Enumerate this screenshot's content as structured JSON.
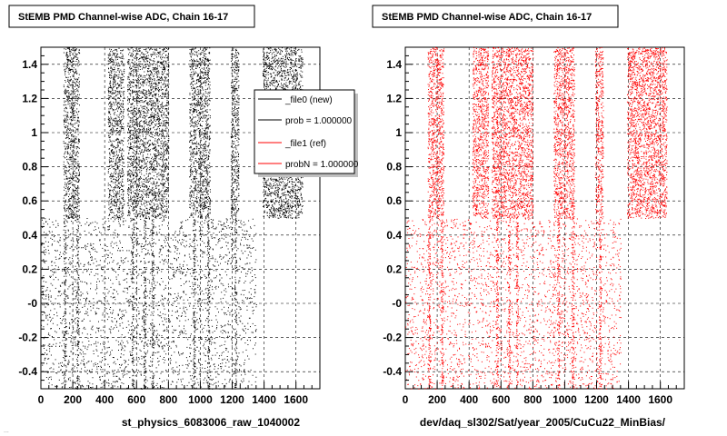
{
  "footer_stamp": "...",
  "chart_data": [
    {
      "type": "scatter",
      "title": "StEMB PMD Channel-wise ADC, Chain 16-17",
      "xlabel": "st_physics_6083006_raw_1040002",
      "ylabel": "",
      "xlim": [
        0,
        1750
      ],
      "ylim": [
        -0.5,
        1.5
      ],
      "x_ticks": [
        "0",
        "200",
        "400",
        "600",
        "800",
        "1000",
        "1200",
        "1400",
        "1600"
      ],
      "y_ticks": [
        "-0.4",
        "-0.2",
        "-0",
        "0.2",
        "0.4",
        "0.6",
        "0.8",
        "1",
        "1.2",
        "1.4"
      ],
      "grid": true,
      "marker_color": "#000000",
      "legend": {
        "position": "top-right",
        "entries": [
          {
            "label": "_file0 (new)",
            "color": "#000000"
          },
          {
            "label": "prob = 1.000000",
            "color": "#000000"
          },
          {
            "label": "_file1 (ref)",
            "color": "#ff0000"
          },
          {
            "label": "probN = 1.000000",
            "color": "#ff0000"
          }
        ]
      },
      "upper_band": {
        "y_range": [
          0.5,
          1.5
        ],
        "column_groups": [
          [
            140,
            240
          ],
          [
            420,
            520
          ],
          [
            540,
            800
          ],
          [
            930,
            1060
          ],
          [
            1190,
            1240
          ],
          [
            1390,
            1640
          ]
        ]
      },
      "lower_band": {
        "y_range": [
          -0.5,
          0.5
        ],
        "x_range": [
          0,
          1350
        ],
        "dense_lines": [
          150,
          230,
          575,
          650,
          700,
          960,
          1050,
          1220
        ]
      }
    },
    {
      "type": "scatter",
      "title": "StEMB PMD Channel-wise ADC, Chain 16-17",
      "xlabel": "dev/daq_sl302/Sat/year_2005/CuCu22_MinBias/",
      "ylabel": "",
      "xlim": [
        0,
        1750
      ],
      "ylim": [
        -0.5,
        1.5
      ],
      "x_ticks": [
        "0",
        "200",
        "400",
        "600",
        "800",
        "1000",
        "1200",
        "1400",
        "1600"
      ],
      "y_ticks": [
        "-0.4",
        "-0.2",
        "-0",
        "0.2",
        "0.4",
        "0.6",
        "0.8",
        "1",
        "1.2",
        "1.4"
      ],
      "grid": true,
      "marker_color": "#ff0000",
      "upper_band": {
        "y_range": [
          0.5,
          1.5
        ],
        "column_groups": [
          [
            140,
            240
          ],
          [
            420,
            520
          ],
          [
            540,
            800
          ],
          [
            930,
            1060
          ],
          [
            1190,
            1240
          ],
          [
            1390,
            1640
          ]
        ]
      },
      "lower_band": {
        "y_range": [
          -0.5,
          0.5
        ],
        "x_range": [
          0,
          1350
        ],
        "dense_lines": [
          150,
          230,
          575,
          650,
          700,
          960,
          1050,
          1220
        ]
      }
    }
  ]
}
